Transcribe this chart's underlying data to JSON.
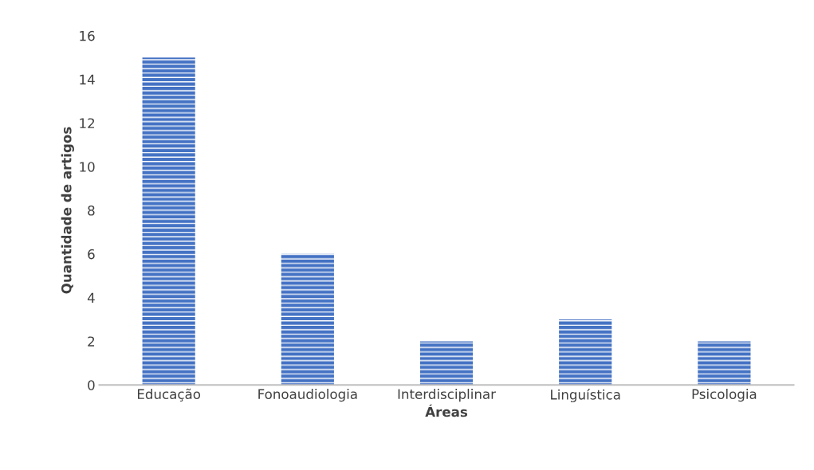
{
  "chart_data": {
    "type": "bar",
    "xlabel": "Áreas",
    "ylabel": "Quantidade de artigos",
    "categories": [
      "Educação",
      "Fonoaudiologia",
      "Interdisciplinar",
      "Linguística",
      "Psicologia"
    ],
    "values": [
      15,
      6,
      2,
      3,
      2
    ],
    "color": "#4472c4",
    "ylim": [
      0,
      16
    ],
    "yticks": [
      0,
      2,
      4,
      6,
      8,
      10,
      12,
      14,
      16
    ],
    "grid": false,
    "legend": false
  }
}
